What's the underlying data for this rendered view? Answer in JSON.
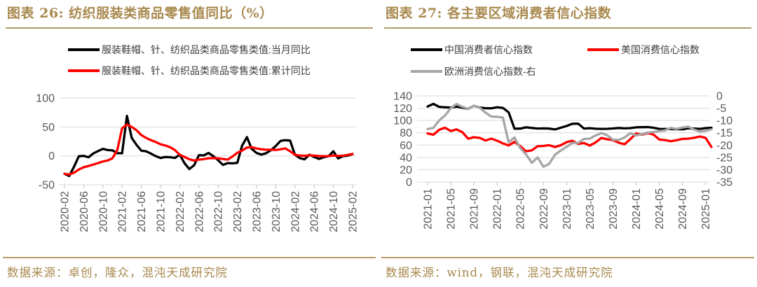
{
  "theme": {
    "gold_text": "#a8894e",
    "gold_rule": "#b49b6a",
    "axis_text": "#595959",
    "grid_line": "#d9d9d9",
    "tick_mark": "#bfbfbf",
    "legend_text": "#3d3d3d",
    "background": "#ffffff"
  },
  "figures": [
    {
      "title": "图表 26: 纺织服装类商品零售值同比（%）",
      "source": "数据来源：卓创，隆众，混沌天成研究院"
    },
    {
      "title": "图表 27: 各主要区域消费者信心指数",
      "source": "数据来源：wind，钢联，混沌天成研究院"
    }
  ],
  "chart_data": [
    {
      "type": "line",
      "title": "纺织服装类商品零售值同比（%）",
      "legend_position": "top-center",
      "grid": true,
      "xtick_every": 4,
      "ylim": [
        -50,
        100
      ],
      "yticks": [
        100,
        50,
        0,
        -50
      ],
      "x_categories": [
        "2020-02",
        "2020-03",
        "2020-04",
        "2020-05",
        "2020-06",
        "2020-07",
        "2020-08",
        "2020-09",
        "2020-10",
        "2020-11",
        "2020-12",
        "2021-01",
        "2021-02",
        "2021-03",
        "2021-04",
        "2021-05",
        "2021-06",
        "2021-07",
        "2021-08",
        "2021-09",
        "2021-10",
        "2021-11",
        "2021-12",
        "2022-01",
        "2022-02",
        "2022-03",
        "2022-04",
        "2022-05",
        "2022-06",
        "2022-07",
        "2022-08",
        "2022-09",
        "2022-10",
        "2022-11",
        "2022-12",
        "2023-01",
        "2023-02",
        "2023-03",
        "2023-04",
        "2023-05",
        "2023-06",
        "2023-07",
        "2023-08",
        "2023-09",
        "2023-10",
        "2023-11",
        "2023-12",
        "2024-01",
        "2024-02",
        "2024-03",
        "2024-04",
        "2024-05",
        "2024-06",
        "2024-07",
        "2024-08",
        "2024-09",
        "2024-10",
        "2024-11",
        "2024-12",
        "2025-01",
        "2025-02"
      ],
      "series": [
        {
          "name": "服装鞋帽、针、纺织品类商品零售类值:当月同比",
          "color": "#000000",
          "axis": "left",
          "values": [
            -30.9,
            -34.8,
            -18.5,
            -0.6,
            -0.1,
            -2.5,
            4.2,
            8.3,
            12.2,
            10.0,
            9.5,
            4.5,
            4.5,
            69.1,
            31.2,
            19.0,
            9.0,
            8.0,
            4.0,
            -0.5,
            -3.7,
            -2.0,
            -2.3,
            -3.5,
            2.0,
            -12.7,
            -22.8,
            -16.2,
            1.2,
            0.8,
            5.1,
            -0.5,
            -7.5,
            -15.6,
            -12.5,
            -13.0,
            -12.0,
            17.7,
            32.4,
            12.0,
            5.0,
            2.3,
            4.5,
            9.9,
            17.0,
            26.0,
            27.0,
            26.5,
            1.9,
            -3.8,
            -6.0,
            2.0,
            -1.9,
            -5.2,
            -2.5,
            -0.4,
            8.0,
            -4.5,
            -0.5,
            0.5,
            3.0
          ]
        },
        {
          "name": "服装鞋帽、针、纺织品类商品零售类值:累计同比",
          "color": "#ff0000",
          "axis": "left",
          "values": [
            -30.9,
            -32.2,
            -29.0,
            -23.5,
            -19.6,
            -17.5,
            -15.0,
            -12.4,
            -9.7,
            -7.9,
            -4.0,
            10.0,
            47.6,
            54.2,
            50.1,
            44.2,
            36.0,
            31.0,
            27.2,
            24.0,
            20.0,
            18.0,
            15.0,
            10.0,
            2.0,
            -2.0,
            -5.8,
            -8.1,
            -6.5,
            -5.6,
            -4.2,
            -3.8,
            -4.2,
            -5.4,
            -6.5,
            -1.0,
            5.4,
            9.0,
            14.3,
            14.9,
            12.8,
            11.5,
            10.6,
            10.6,
            10.2,
            11.3,
            12.9,
            8.0,
            1.9,
            0.6,
            0.1,
            0.9,
            0.5,
            -0.3,
            -0.5,
            -0.4,
            0.6,
            0.1,
            0.3,
            1.8,
            3.3
          ]
        }
      ]
    },
    {
      "type": "line",
      "title": "各主要区域消费者信心指数",
      "legend_position": "top-two-columns",
      "grid": true,
      "xtick_every": 4,
      "ylim": [
        0,
        140
      ],
      "yticks": [
        140,
        120,
        100,
        80,
        60,
        40,
        20,
        0
      ],
      "y2lim": [
        -35,
        0
      ],
      "y2ticks": [
        0,
        -5,
        -10,
        -15,
        -20,
        -25,
        -30,
        -35
      ],
      "x_categories": [
        "2021-01",
        "2021-02",
        "2021-03",
        "2021-04",
        "2021-05",
        "2021-06",
        "2021-07",
        "2021-08",
        "2021-09",
        "2021-10",
        "2021-11",
        "2021-12",
        "2022-01",
        "2022-02",
        "2022-03",
        "2022-04",
        "2022-05",
        "2022-06",
        "2022-07",
        "2022-08",
        "2022-09",
        "2022-10",
        "2022-11",
        "2022-12",
        "2023-01",
        "2023-02",
        "2023-03",
        "2023-04",
        "2023-05",
        "2023-06",
        "2023-07",
        "2023-08",
        "2023-09",
        "2023-10",
        "2023-11",
        "2023-12",
        "2024-01",
        "2024-02",
        "2024-03",
        "2024-04",
        "2024-05",
        "2024-06",
        "2024-07",
        "2024-08",
        "2024-09",
        "2024-10",
        "2024-11",
        "2024-12",
        "2025-01",
        "2025-02"
      ],
      "series": [
        {
          "name": "中国消费者信心指数",
          "color": "#000000",
          "axis": "left",
          "values": [
            122.8,
            127.0,
            122.2,
            121.5,
            121.1,
            122.5,
            120.8,
            119.0,
            124.0,
            121.0,
            120.0,
            119.8,
            121.5,
            120.5,
            113.2,
            86.7,
            86.8,
            88.9,
            87.9,
            87.0,
            87.2,
            86.8,
            85.5,
            88.3,
            91.2,
            94.7,
            94.9,
            87.0,
            87.5,
            86.6,
            86.4,
            86.5,
            87.1,
            87.9,
            87.2,
            87.6,
            88.9,
            89.1,
            89.4,
            88.2,
            86.4,
            86.2,
            86.0,
            85.8,
            85.7,
            87.3,
            86.9,
            86.4,
            87.6,
            88.2
          ]
        },
        {
          "name": "美国消费信心指数",
          "color": "#ff0000",
          "axis": "left",
          "values": [
            79.0,
            76.8,
            84.9,
            88.3,
            82.9,
            85.5,
            81.2,
            70.3,
            72.8,
            71.7,
            67.4,
            70.6,
            67.2,
            62.8,
            59.4,
            65.2,
            58.4,
            50.0,
            51.5,
            58.2,
            58.6,
            59.9,
            56.8,
            59.7,
            64.9,
            67.0,
            62.0,
            63.5,
            59.2,
            64.4,
            71.6,
            69.5,
            68.1,
            63.8,
            61.3,
            69.7,
            79.0,
            76.9,
            79.4,
            77.2,
            69.1,
            68.2,
            66.4,
            67.9,
            70.1,
            70.5,
            71.8,
            74.0,
            71.7,
            57.0
          ]
        },
        {
          "name": "欧洲消费信心指数-右",
          "color": "#a6a6a6",
          "axis": "right",
          "values": [
            -13.5,
            -13.0,
            -10.0,
            -8.0,
            -5.0,
            -3.3,
            -4.4,
            -5.3,
            -4.0,
            -4.8,
            -6.8,
            -8.4,
            -8.5,
            -8.8,
            -18.9,
            -16.9,
            -21.2,
            -23.8,
            -27.2,
            -25.0,
            -28.8,
            -27.6,
            -23.9,
            -22.2,
            -20.7,
            -19.1,
            -19.1,
            -17.5,
            -17.4,
            -16.1,
            -15.1,
            -16.0,
            -17.8,
            -17.9,
            -16.9,
            -15.1,
            -16.1,
            -15.5,
            -14.9,
            -14.7,
            -14.3,
            -14.0,
            -13.0,
            -13.4,
            -12.9,
            -12.5,
            -13.7,
            -14.5,
            -14.2,
            -13.6
          ]
        }
      ]
    }
  ]
}
